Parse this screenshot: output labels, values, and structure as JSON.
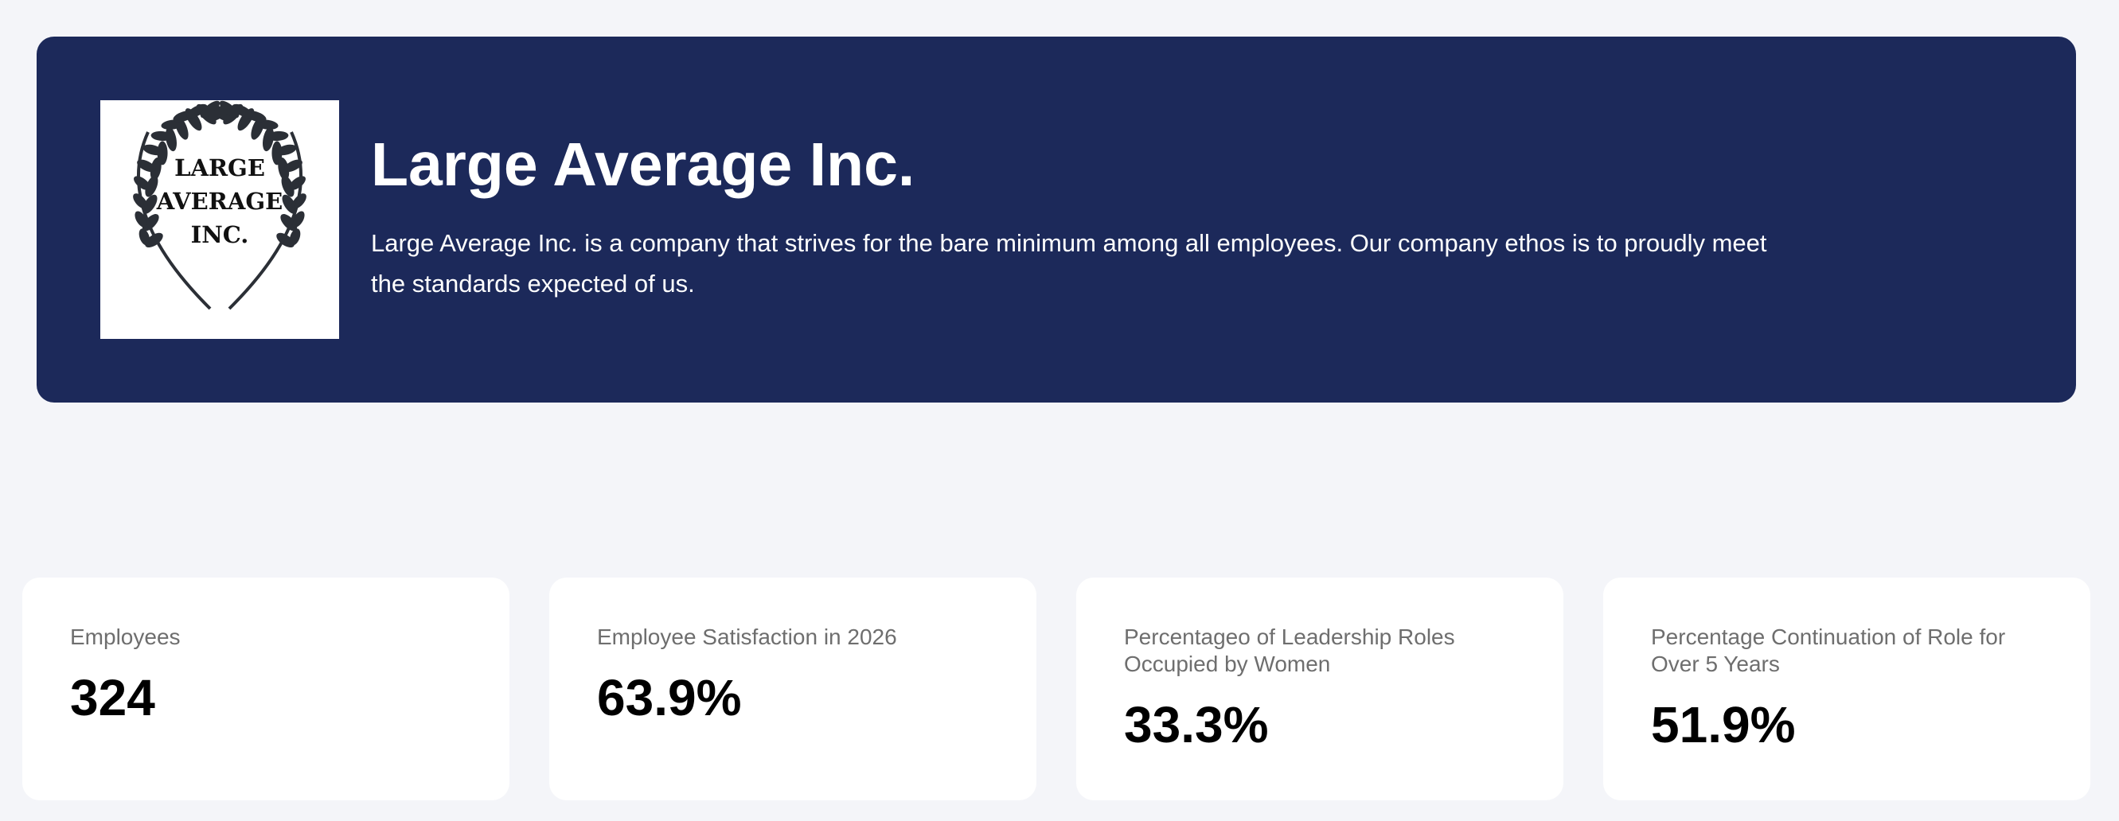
{
  "company": {
    "logo_text_line1": "LARGE",
    "logo_text_line2": "AVERAGE",
    "logo_text_line3": "INC.",
    "name": "Large Average Inc.",
    "description": "Large Average Inc. is a company that strives for the bare minimum among all employees. Our company ethos is to proudly meet the standards expected of us."
  },
  "stats": [
    {
      "label": "Employees",
      "value": "324"
    },
    {
      "label": "Employee Satisfaction in 2026",
      "value": "63.9%"
    },
    {
      "label": "Percentageo of Leadership Roles Occupied by Women",
      "value": "33.3%"
    },
    {
      "label": "Percentage Continuation of Role for Over 5 Years",
      "value": "51.9%"
    }
  ],
  "colors": {
    "hero_background": "#1c295a",
    "page_background": "#f4f5f9",
    "card_background": "#ffffff",
    "label_text": "#6e6e6e",
    "logo_ink": "#2b2f36"
  }
}
